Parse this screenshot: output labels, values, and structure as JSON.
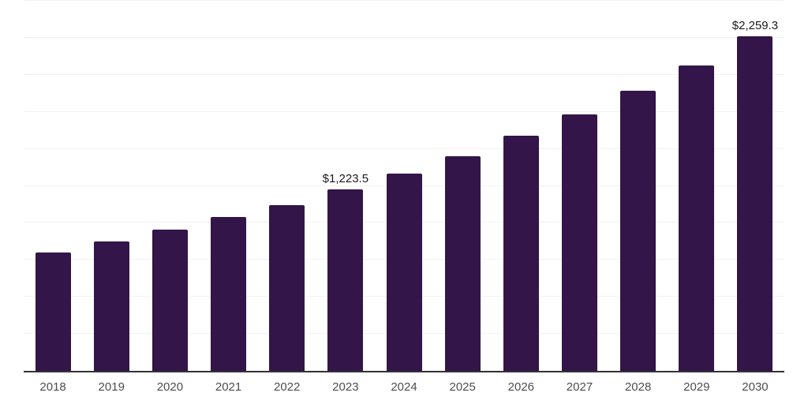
{
  "chart_data": {
    "type": "bar",
    "title": "",
    "xlabel": "",
    "ylabel": "",
    "categories": [
      "2018",
      "2019",
      "2020",
      "2021",
      "2022",
      "2023",
      "2024",
      "2025",
      "2026",
      "2027",
      "2028",
      "2029",
      "2030"
    ],
    "values": [
      800,
      872,
      952,
      1037,
      1121,
      1223.5,
      1331,
      1452,
      1588,
      1731,
      1894,
      2065,
      2259.3
    ],
    "data_labels": {
      "2023": "$1,223.5",
      "2030": "$2,259.3"
    },
    "ylim": [
      0,
      2500
    ],
    "gridline_step": 250,
    "grid": true,
    "y_axis_visible": false,
    "legend": "none",
    "colors": {
      "bar": "#331549",
      "gridline": "#f2f2f2",
      "axis_line": "#333333",
      "tick_label": "#4d4d4d",
      "data_label": "#1a1a1a",
      "background": "#ffffff"
    }
  }
}
